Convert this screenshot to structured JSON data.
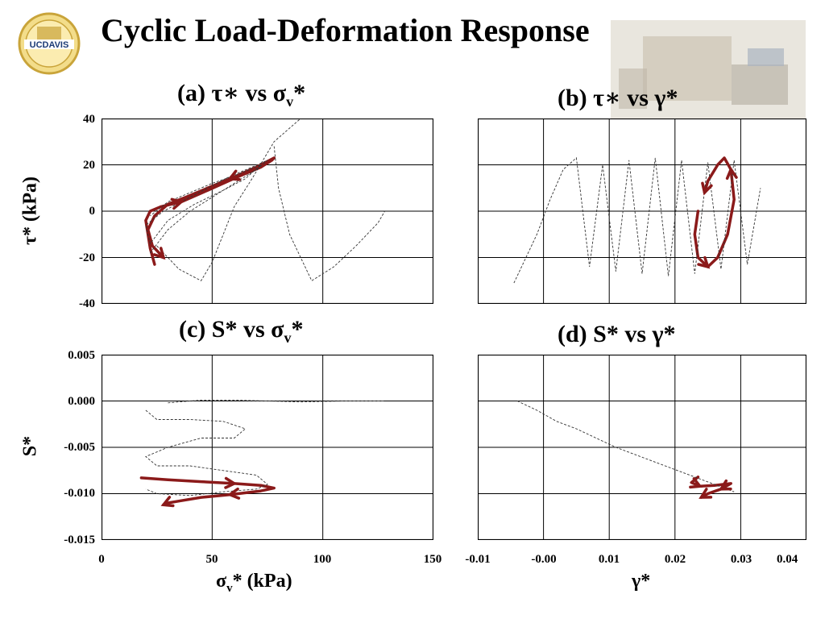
{
  "page": {
    "title": "Cyclic Load-Deformation Response",
    "logo_text": "UCDAVIS"
  },
  "panel_titles": {
    "a": {
      "prefix": "(a) ",
      "tau": "τ",
      "star": "∗",
      "vs": " vs ",
      "sigma": "σ",
      "sub": "v",
      "tail": "*"
    },
    "b": {
      "prefix": "(b) ",
      "tau": "τ",
      "star": "∗",
      "vs": " vs ",
      "gamma": "γ*"
    },
    "c": {
      "prefix": "(c) S* vs ",
      "sigma": "σ",
      "sub": "v",
      "tail": "*"
    },
    "d": {
      "text": "(d) S* vs γ*"
    }
  },
  "axis_labels": {
    "tau_y": "τ* (kPa)",
    "s_y": "S*",
    "sigma_x_main": "σ",
    "sigma_x_sub": "v",
    "sigma_x_tail": "* (kPa)",
    "gamma_x": "γ*"
  },
  "ticks": {
    "tau": [
      "40",
      "20",
      "0",
      "-20",
      "-40"
    ],
    "s": [
      "0.005",
      "0.000",
      "-0.005",
      "-0.010",
      "-0.015"
    ],
    "sigma": [
      "0",
      "50",
      "100",
      "150"
    ],
    "gamma": [
      "-0.01",
      "-0.00",
      "0.01",
      "0.02",
      "0.03",
      "0.04"
    ]
  },
  "colors": {
    "highlight": "#8b1a1a",
    "dashed": "#333333",
    "grid": "#000000"
  },
  "chart_data": [
    {
      "id": "a",
      "type": "line",
      "xlim": [
        0,
        150
      ],
      "ylim": [
        -40,
        40
      ],
      "grid": true,
      "series": [
        {
          "style": "dashed",
          "x": [
            22,
            30,
            40,
            50,
            60,
            70,
            75,
            68,
            58,
            48,
            38,
            28,
            20,
            22,
            30,
            42,
            55,
            65,
            72,
            62,
            50,
            40,
            30,
            22
          ],
          "y": [
            -18,
            -8,
            0,
            6,
            12,
            18,
            22,
            19,
            15,
            10,
            5,
            0,
            -6,
            -14,
            -4,
            3,
            9,
            14,
            20,
            16,
            12,
            8,
            4,
            -2
          ]
        },
        {
          "style": "dashed",
          "x": [
            25,
            35,
            45,
            50,
            55,
            60,
            68,
            78,
            90
          ],
          "y": [
            -15,
            -25,
            -30,
            -22,
            -10,
            2,
            14,
            30,
            40
          ]
        },
        {
          "style": "dashed",
          "x": [
            78,
            80,
            85,
            95,
            105,
            115,
            125,
            128
          ],
          "y": [
            28,
            10,
            -10,
            -30,
            -24,
            -15,
            -5,
            0
          ]
        },
        {
          "style": "solid",
          "x": [
            24,
            22,
            21,
            20,
            22,
            27,
            36,
            48,
            62,
            72,
            77,
            78,
            70,
            58,
            48,
            38,
            30,
            24,
            21,
            23,
            28
          ],
          "y": [
            -23,
            -16,
            -10,
            -4,
            0,
            2,
            4,
            9,
            15,
            19,
            22,
            23,
            19,
            14,
            10,
            6,
            3,
            -2,
            -8,
            -15,
            -20
          ]
        }
      ]
    },
    {
      "id": "b",
      "type": "line",
      "xlim": [
        -0.01,
        0.04
      ],
      "ylim": [
        -40,
        40
      ],
      "grid": true,
      "series": [
        {
          "style": "dashed",
          "x": [
            -0.0045,
            -0.003,
            -0.001,
            0.001,
            0.003,
            0.005,
            0.007,
            0.009,
            0.011,
            0.013,
            0.015,
            0.017,
            0.019,
            0.021,
            0.023,
            0.025,
            0.027,
            0.029,
            0.031,
            0.033
          ],
          "y": [
            -31,
            -22,
            -10,
            5,
            18,
            23,
            -24,
            20,
            -26,
            22,
            -27,
            23,
            -28,
            22,
            -27,
            21,
            -25,
            22,
            -23,
            10
          ]
        },
        {
          "style": "solid",
          "x": [
            0.0235,
            0.023,
            0.0235,
            0.025,
            0.0265,
            0.028,
            0.029,
            0.0285,
            0.0275,
            0.0265,
            0.025,
            0.0245
          ],
          "y": [
            0,
            -10,
            -20,
            -24,
            -20,
            -10,
            5,
            18,
            23,
            20,
            13,
            8
          ]
        }
      ]
    },
    {
      "id": "c",
      "type": "line",
      "xlim": [
        0,
        150
      ],
      "ylim": [
        -0.015,
        0.005
      ],
      "grid": true,
      "series": [
        {
          "style": "dashed",
          "x": [
            30,
            45,
            60,
            75,
            90,
            110,
            128
          ],
          "y": [
            -0.0002,
            0.0001,
            0.0001,
            0.0,
            -0.0001,
            0.0,
            0.0
          ]
        },
        {
          "style": "dashed",
          "x": [
            20,
            25,
            40,
            55,
            65,
            60,
            45,
            30,
            20,
            25,
            40,
            55,
            70,
            75,
            70,
            55,
            40,
            25,
            20
          ],
          "y": [
            -0.001,
            -0.002,
            -0.002,
            -0.0022,
            -0.003,
            -0.004,
            -0.004,
            -0.005,
            -0.006,
            -0.007,
            -0.007,
            -0.0075,
            -0.008,
            -0.009,
            -0.0095,
            -0.0098,
            -0.0102,
            -0.01,
            -0.0095
          ]
        },
        {
          "style": "solid",
          "x": [
            18,
            30,
            45,
            60,
            72,
            78,
            72,
            58,
            45,
            35,
            30,
            28
          ],
          "y": [
            -0.0083,
            -0.0085,
            -0.0087,
            -0.0089,
            -0.0091,
            -0.0094,
            -0.0097,
            -0.0101,
            -0.0104,
            -0.0108,
            -0.011,
            -0.0112
          ]
        }
      ]
    },
    {
      "id": "d",
      "type": "line",
      "xlim": [
        -0.01,
        0.04
      ],
      "ylim": [
        -0.015,
        0.005
      ],
      "grid": true,
      "series": [
        {
          "style": "dashed",
          "x": [
            -0.004,
            -0.001,
            0.002,
            0.005,
            0.008,
            0.011,
            0.014,
            0.017,
            0.02,
            0.023,
            0.026,
            0.029
          ],
          "y": [
            0.0,
            -0.001,
            -0.0022,
            -0.003,
            -0.004,
            -0.005,
            -0.0058,
            -0.0066,
            -0.0074,
            -0.0082,
            -0.009,
            -0.0098
          ]
        },
        {
          "style": "solid",
          "x": [
            0.0235,
            0.0225,
            0.0238,
            0.026,
            0.0285,
            0.027,
            0.025,
            0.024
          ],
          "y": [
            -0.0082,
            -0.0088,
            -0.0092,
            -0.0091,
            -0.0089,
            -0.0095,
            -0.01,
            -0.0104
          ]
        }
      ]
    }
  ]
}
